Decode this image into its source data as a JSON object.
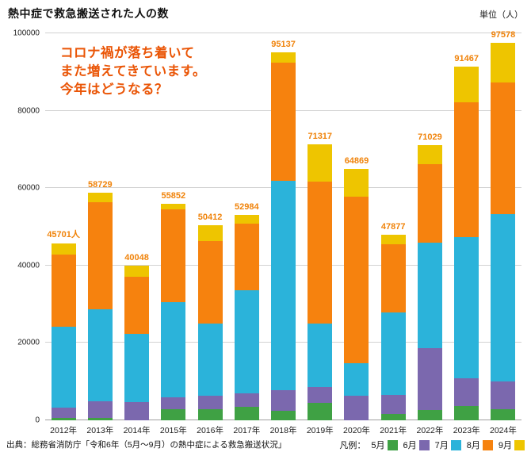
{
  "chart_data": {
    "type": "bar",
    "stacked": true,
    "title": "熱中症で救急搬送された人の数",
    "unit_label": "単位（人）",
    "ylim": [
      0,
      100000
    ],
    "yticks": [
      0,
      20000,
      40000,
      60000,
      80000,
      100000
    ],
    "grid": true,
    "categories": [
      "2012年",
      "2013年",
      "2014年",
      "2015年",
      "2016年",
      "2017年",
      "2018年",
      "2019年",
      "2020年",
      "2021年",
      "2022年",
      "2023年",
      "2024年"
    ],
    "totals": [
      45701,
      58729,
      40048,
      55852,
      50412,
      52984,
      95137,
      71317,
      64869,
      47877,
      71029,
      91467,
      97578
    ],
    "total_labels": [
      "45701人",
      "58729",
      "40048",
      "55852",
      "50412",
      "52984",
      "95137",
      "71317",
      "64869",
      "47877",
      "71029",
      "91467",
      "97578"
    ],
    "series": [
      {
        "name": "5月",
        "color": "#3fa144",
        "values": [
          575,
          680,
          0,
          2904,
          2788,
          3401,
          2427,
          4448,
          0,
          1626,
          2668,
          3655,
          2798
        ]
      },
      {
        "name": "6月",
        "color": "#7b68ae",
        "values": [
          2619,
          4265,
          4634,
          3032,
          3558,
          3481,
          5269,
          4151,
          6336,
          4945,
          15969,
          7235,
          7275
        ]
      },
      {
        "name": "7月",
        "color": "#2bb3da",
        "values": [
          21082,
          23699,
          17644,
          24567,
          18671,
          26702,
          54220,
          16431,
          8388,
          21372,
          27209,
          36549,
          43195
        ]
      },
      {
        "name": "8月",
        "color": "#f6820e",
        "values": [
          18573,
          27632,
          14896,
          23925,
          21383,
          17302,
          30410,
          36755,
          43060,
          17579,
          20252,
          34835,
          34082
        ]
      },
      {
        "name": "9月",
        "color": "#eec500",
        "values": [
          2852,
          2453,
          2874,
          1424,
          4012,
          2098,
          2811,
          9532,
          7085,
          2355,
          4931,
          9193,
          10228
        ]
      }
    ],
    "annotation": {
      "lines": [
        "コロナ禍が落ち着いて",
        "また増えてきています。",
        "今年はどうなる？"
      ],
      "color": "#ea5506"
    },
    "legend": {
      "prefix": "凡例：",
      "position": "bottom-right"
    },
    "source": "出典：総務省消防庁「令和6年（5月～9月）の熱中症による救急搬送状況」",
    "value_label_color": "#f0830a"
  }
}
